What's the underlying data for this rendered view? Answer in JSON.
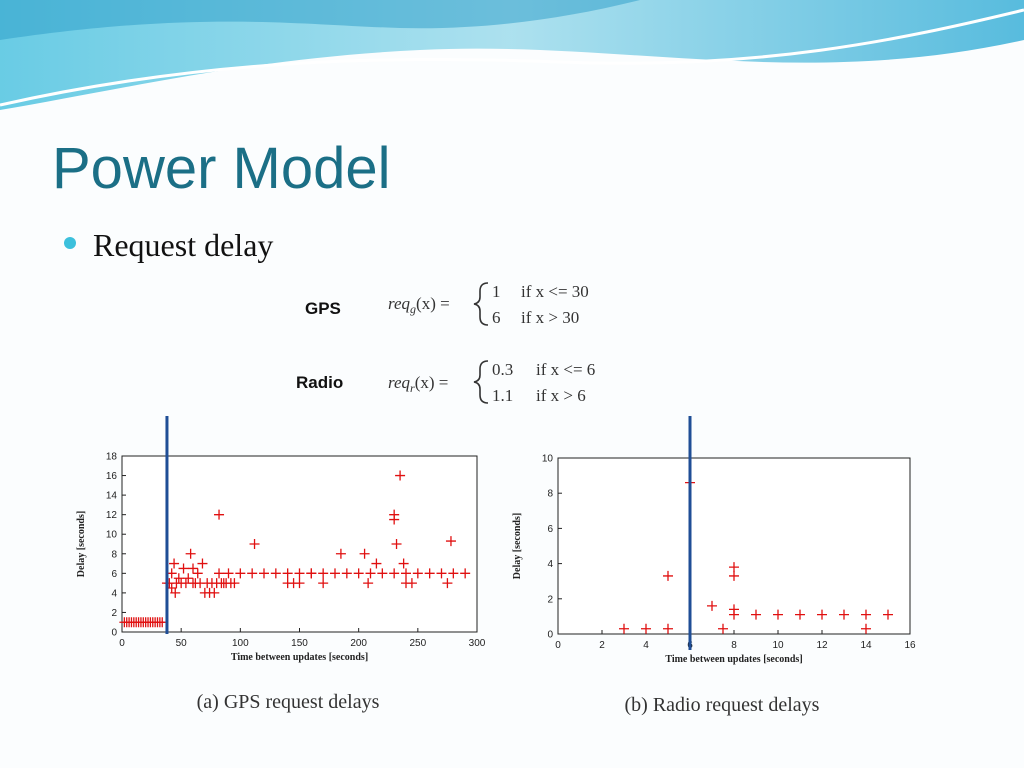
{
  "title": "Power Model",
  "bullet": "Request delay",
  "formulas": [
    {
      "label": "GPS",
      "func": "req",
      "sub": "g",
      "arg": "(x) =",
      "cases": [
        [
          "1",
          "if x <= 30"
        ],
        [
          "6",
          "if x > 30"
        ]
      ]
    },
    {
      "label": "Radio",
      "func": "req",
      "sub": "r",
      "arg": "(x) =",
      "cases": [
        [
          "0.3",
          "if x <= 6"
        ],
        [
          "1.1",
          "if x > 6"
        ]
      ]
    }
  ],
  "chart_data": [
    {
      "type": "scatter",
      "caption": "(a) GPS request delays",
      "x_label": "Time between updates [seconds]",
      "y_label": "Delay [seconds]",
      "xlim": [
        0,
        300
      ],
      "ylim": [
        0,
        18
      ],
      "xticks": [
        0,
        50,
        100,
        150,
        200,
        250,
        300
      ],
      "yticks": [
        0,
        2,
        4,
        6,
        8,
        10,
        12,
        14,
        16,
        18
      ],
      "color": "#e01010",
      "vline_x": 38,
      "vline_color": "#1f4e96",
      "x": [
        2,
        4,
        6,
        8,
        10,
        12,
        14,
        16,
        18,
        20,
        22,
        24,
        26,
        28,
        30,
        32,
        34,
        38,
        40,
        42,
        42,
        44,
        45,
        46,
        48,
        50,
        52,
        54,
        56,
        58,
        60,
        60,
        62,
        64,
        66,
        68,
        70,
        72,
        74,
        76,
        78,
        80,
        82,
        82,
        84,
        86,
        88,
        90,
        92,
        95,
        100,
        110,
        120,
        130,
        140,
        150,
        160,
        170,
        180,
        190,
        200,
        210,
        220,
        230,
        240,
        250,
        260,
        270,
        280,
        290,
        112,
        140,
        145,
        150,
        160,
        170,
        185,
        205,
        208,
        215,
        230,
        230,
        232,
        235,
        238,
        240,
        245,
        275,
        278
      ],
      "values": [
        1,
        1,
        1,
        1,
        1,
        1,
        1,
        1,
        1,
        1,
        1,
        1,
        1,
        1,
        1,
        1,
        1,
        5,
        5,
        6,
        4.5,
        7,
        4,
        5,
        5.5,
        5,
        6.5,
        5,
        5.5,
        8,
        5,
        6.5,
        5,
        6,
        5,
        7,
        4,
        5,
        4,
        5,
        4,
        5,
        12,
        6,
        5,
        5,
        5,
        6,
        5,
        5,
        6,
        6,
        6,
        6,
        6,
        6,
        6,
        6,
        6,
        6,
        6,
        6,
        6,
        6,
        6,
        6,
        6,
        6,
        6,
        6,
        9,
        5,
        5,
        5,
        6,
        5,
        8,
        8,
        5,
        7,
        12,
        11.5,
        9,
        16,
        7,
        5,
        5,
        5,
        9.3
      ]
    },
    {
      "type": "scatter",
      "caption": "(b) Radio request delays",
      "x_label": "Time between updates [seconds]",
      "y_label": "Delay [seconds]",
      "xlim": [
        0,
        16
      ],
      "ylim": [
        0,
        10
      ],
      "xticks": [
        0,
        2,
        4,
        6,
        8,
        10,
        12,
        14,
        16
      ],
      "yticks": [
        0,
        2,
        4,
        6,
        8,
        10
      ],
      "color": "#e01010",
      "vline_x": 6,
      "vline_color": "#1f4e96",
      "x": [
        3,
        4,
        5,
        5,
        6,
        7,
        7.5,
        8,
        8,
        8,
        8,
        9,
        10,
        11,
        12,
        13,
        14,
        14,
        15
      ],
      "values": [
        0.3,
        0.3,
        0.3,
        3.3,
        8.6,
        1.6,
        0.3,
        1.1,
        1.4,
        3.3,
        3.8,
        1.1,
        1.1,
        1.1,
        1.1,
        1.1,
        1.1,
        0.3,
        1.1
      ]
    }
  ]
}
